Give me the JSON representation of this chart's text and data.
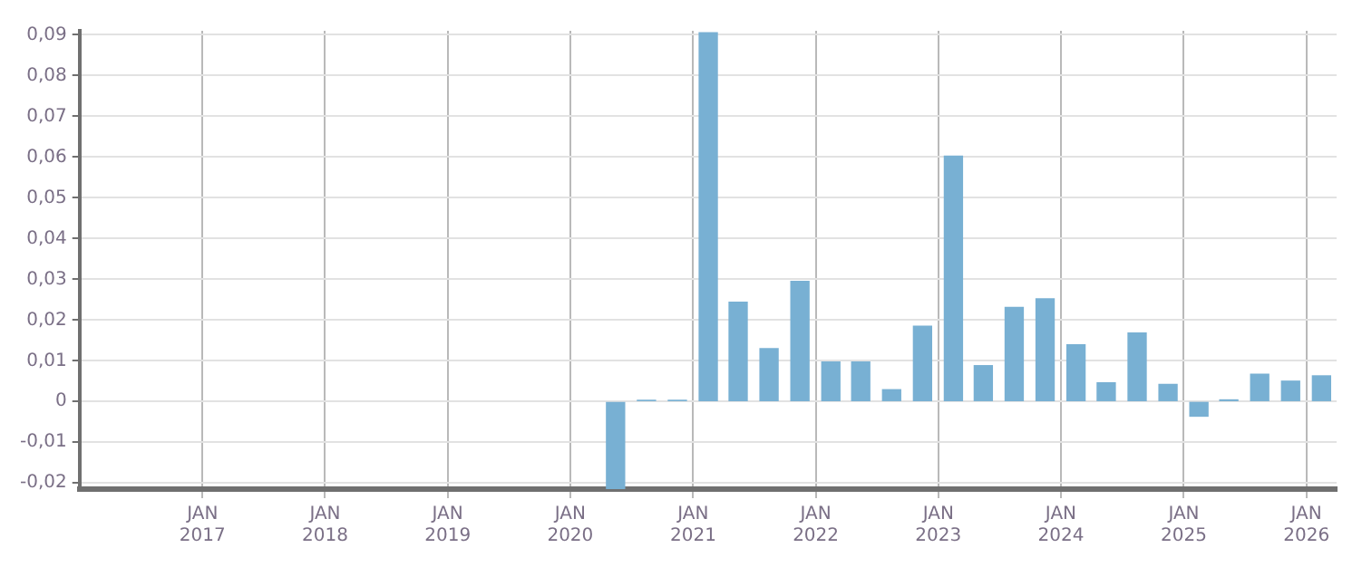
{
  "chart_data": {
    "type": "bar",
    "x": [
      "2020-05-15",
      "2020-08-15",
      "2020-11-15",
      "2021-02-15",
      "2021-05-15",
      "2021-08-15",
      "2021-11-15",
      "2022-02-15",
      "2022-05-15",
      "2022-08-15",
      "2022-11-15",
      "2023-02-15",
      "2023-05-15",
      "2023-08-15",
      "2023-11-15",
      "2024-02-15",
      "2024-05-15",
      "2024-08-15",
      "2024-11-15",
      "2025-02-15",
      "2025-05-15",
      "2025-08-15",
      "2025-11-15",
      "2026-02-15"
    ],
    "values": [
      -0.0215,
      0.0003,
      0.0003,
      0.0905,
      0.0244,
      0.013,
      0.0295,
      0.0097,
      0.0097,
      0.0029,
      0.0185,
      0.0602,
      0.0088,
      0.0231,
      0.0252,
      0.0139,
      0.0046,
      0.0168,
      0.0042,
      -0.0036,
      0.0004,
      0.0067,
      0.005,
      0.0063
    ],
    "color": "#78b0d3",
    "xlim": [
      "2016-01-01",
      "2026-04-01"
    ],
    "xticks": [
      {
        "value": "2017-01-01",
        "label": "JAN 2017"
      },
      {
        "value": "2018-01-01",
        "label": "JAN 2018"
      },
      {
        "value": "2019-01-01",
        "label": "JAN 2019"
      },
      {
        "value": "2020-01-01",
        "label": "JAN 2020"
      },
      {
        "value": "2021-01-01",
        "label": "JAN 2021"
      },
      {
        "value": "2022-01-01",
        "label": "JAN 2022"
      },
      {
        "value": "2023-01-01",
        "label": "JAN 2023"
      },
      {
        "value": "2024-01-01",
        "label": "JAN 2024"
      },
      {
        "value": "2025-01-01",
        "label": "JAN 2025"
      },
      {
        "value": "2026-01-01",
        "label": "JAN 2026"
      }
    ],
    "ylim": [
      -0.0215,
      0.091
    ],
    "yticks": [
      {
        "value": -0.02,
        "label": "-0,02"
      },
      {
        "value": -0.01,
        "label": "-0,01"
      },
      0,
      {
        "value": 0.01,
        "label": "0,01"
      },
      {
        "value": 0.02,
        "label": "0,02"
      },
      {
        "value": 0.03,
        "label": "0,03"
      },
      {
        "value": 0.04,
        "label": "0,04"
      },
      {
        "value": 0.05,
        "label": "0,05"
      },
      {
        "value": 0.06,
        "label": "0,06"
      },
      {
        "value": 0.07,
        "label": "0,07"
      },
      {
        "value": 0.08,
        "label": "0,08"
      },
      {
        "value": 0.09,
        "label": "0,09"
      }
    ],
    "grid": true
  }
}
